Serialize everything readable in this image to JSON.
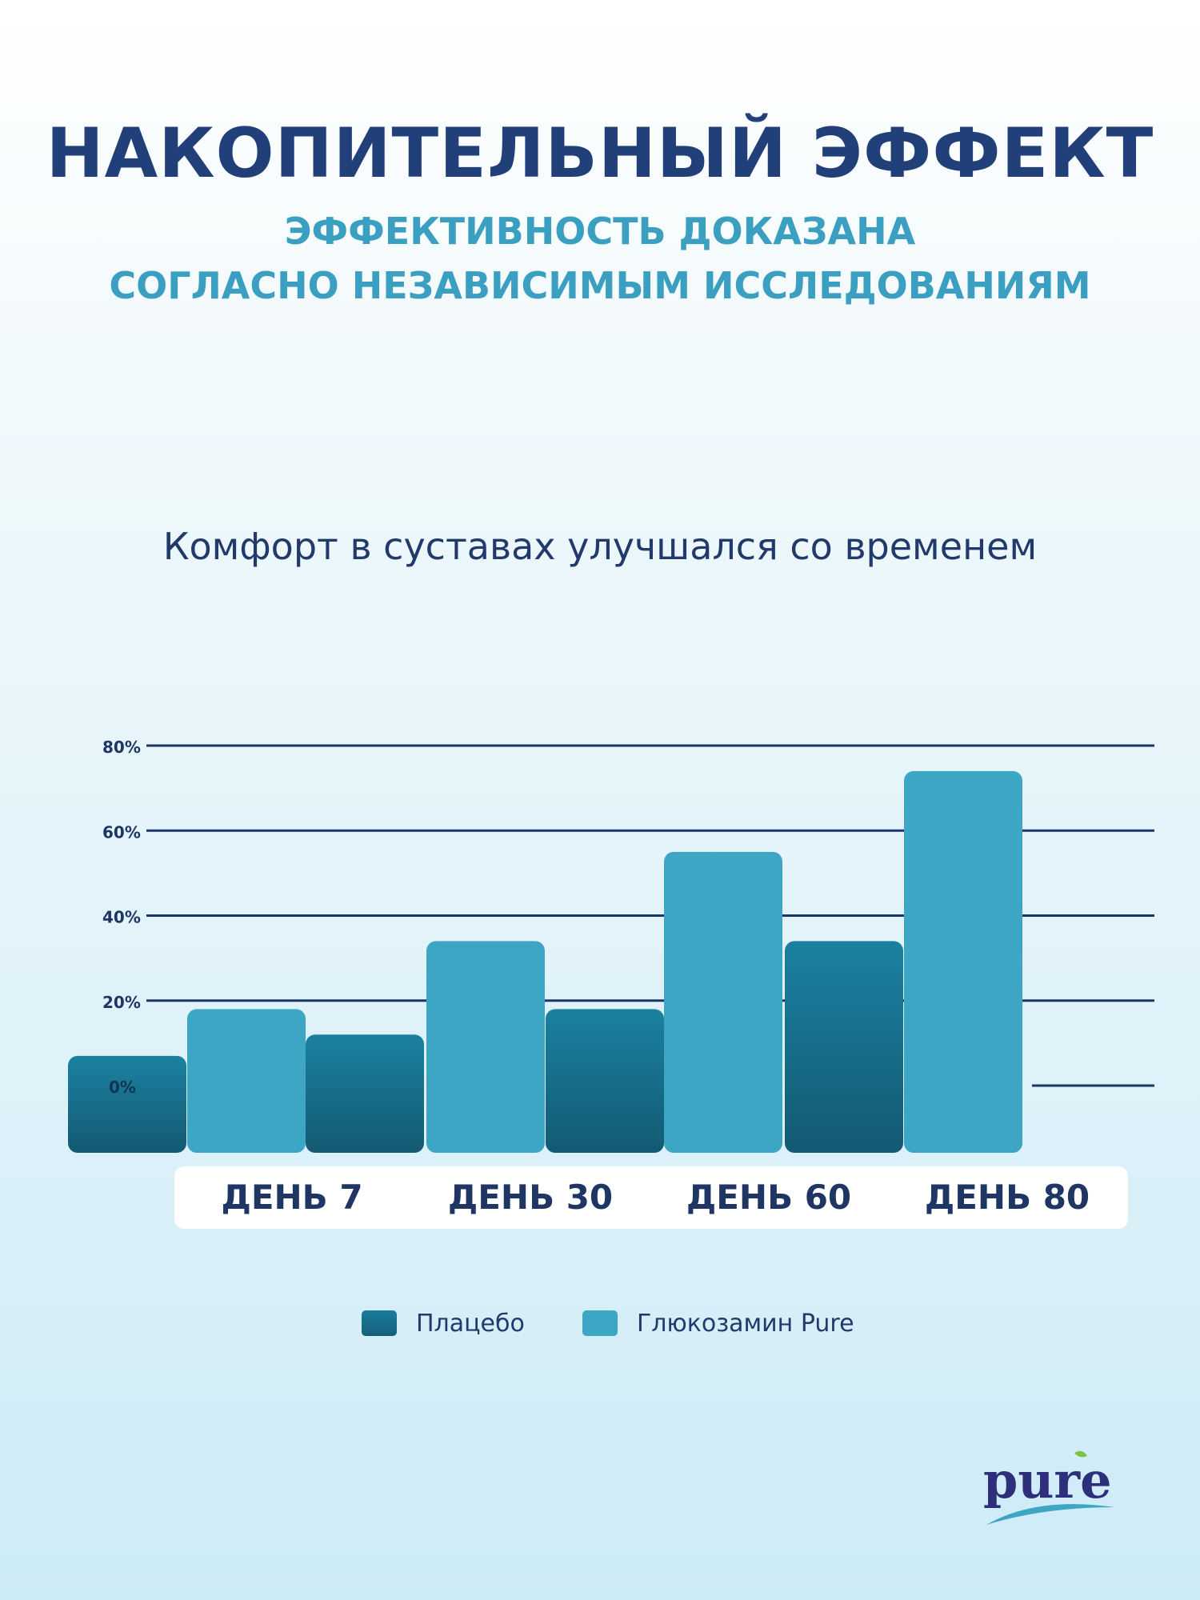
{
  "header": {
    "title": "НАКОПИТЕЛЬНЫЙ ЭФФЕКТ",
    "subtitle_line1": "ЭФФЕКТИВНОСТЬ ДОКАЗАНА",
    "subtitle_line2": "СОГЛАСНО НЕЗАВИСИМЫМ ИССЛЕДОВАНИЯМ"
  },
  "colors": {
    "placebo": "#176d88",
    "glucosamine": "#3ea6c5",
    "grid": "#1b3566",
    "title": "#213f78",
    "subtitle": "#3a9fc1"
  },
  "chart_data": {
    "type": "bar",
    "title": "Комфорт в суставах улучшался со временем",
    "categories": [
      "ДЕНЬ 7",
      "ДЕНЬ 30",
      "ДЕНЬ 60",
      "ДЕНЬ 80"
    ],
    "series": [
      {
        "name": "Плацебо",
        "values": [
          12,
          18,
          34,
          null
        ]
      },
      {
        "name": "Глюкозамин Pure",
        "values": [
          18,
          34,
          55,
          74
        ]
      }
    ],
    "lead_bar": {
      "series": "Плацебо",
      "value": 7
    },
    "yticks": [
      0,
      20,
      40,
      60,
      80
    ],
    "ytick_labels": [
      "0%",
      "20%",
      "40%",
      "60%",
      "80%"
    ],
    "ylim": [
      -15,
      80
    ],
    "grid": true,
    "legend_position": "bottom-center"
  },
  "logo": {
    "text": "pure"
  }
}
